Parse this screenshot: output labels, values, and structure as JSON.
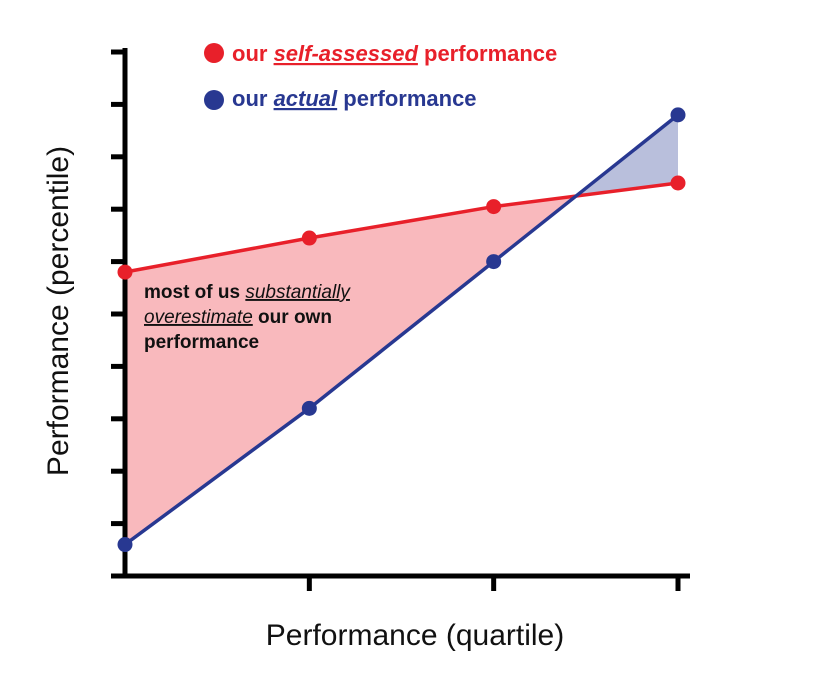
{
  "chart_data": {
    "type": "line",
    "xlabel": "Performance (quartile)",
    "ylabel": "Performance (percentile)",
    "x": [
      1,
      2,
      3,
      4
    ],
    "xlim": [
      1,
      4
    ],
    "ylim": [
      0,
      100
    ],
    "y_ticks": [
      0,
      10,
      20,
      30,
      40,
      50,
      60,
      70,
      80,
      90,
      100
    ],
    "tick_labels_shown": false,
    "grid": false,
    "legend_position": "top",
    "series": [
      {
        "name": "self-assessed",
        "legend_prefix": "our ",
        "legend_emphasis": "self-assessed",
        "legend_suffix": " performance",
        "color": "#e8202a",
        "values": [
          58,
          64.5,
          70.5,
          75
        ]
      },
      {
        "name": "actual",
        "legend_prefix": "our ",
        "legend_emphasis": "actual",
        "legend_suffix": " performance",
        "color": "#283891",
        "values": [
          6,
          32,
          60,
          88
        ]
      }
    ],
    "fill_colors": {
      "overestimate": "#f9b9bd",
      "underestimate": "#b9bfdc"
    },
    "annotation": {
      "line1_plain": "most of us ",
      "line1_emph": "substantially",
      "line2_emph": "overestimate",
      "line2_plain": " our own",
      "line3_plain": "performance"
    }
  }
}
